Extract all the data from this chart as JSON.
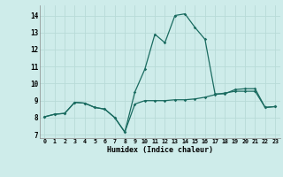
{
  "xlabel": "Humidex (Indice chaleur)",
  "ylabel": "",
  "background_color": "#ceecea",
  "grid_color": "#b8dbd8",
  "line_color": "#1a6b60",
  "xlim": [
    -0.5,
    23.5
  ],
  "ylim": [
    6.8,
    14.6
  ],
  "xticks": [
    0,
    1,
    2,
    3,
    4,
    5,
    6,
    7,
    8,
    9,
    10,
    11,
    12,
    13,
    14,
    15,
    16,
    17,
    18,
    19,
    20,
    21,
    22,
    23
  ],
  "yticks": [
    7,
    8,
    9,
    10,
    11,
    12,
    13,
    14
  ],
  "series1_x": [
    0,
    1,
    2,
    3,
    4,
    5,
    6,
    7,
    8,
    9,
    10,
    11,
    12,
    13,
    14,
    15,
    16,
    17,
    18,
    19,
    20,
    21,
    22,
    23
  ],
  "series1_y": [
    8.05,
    8.2,
    8.25,
    8.9,
    8.85,
    8.6,
    8.5,
    8.0,
    7.15,
    8.8,
    9.0,
    9.0,
    9.0,
    9.05,
    9.05,
    9.1,
    9.2,
    9.35,
    9.45,
    9.55,
    9.55,
    9.55,
    8.6,
    8.65
  ],
  "series2_x": [
    0,
    1,
    2,
    3,
    4,
    5,
    6,
    7,
    8,
    9,
    10,
    11,
    12,
    13,
    14,
    15,
    16,
    17,
    18,
    19,
    20,
    21,
    22,
    23
  ],
  "series2_y": [
    8.05,
    8.2,
    8.25,
    8.9,
    8.85,
    8.6,
    8.5,
    8.0,
    7.15,
    9.5,
    10.85,
    12.9,
    12.4,
    14.0,
    14.1,
    13.3,
    12.6,
    9.4,
    9.4,
    9.65,
    9.7,
    9.7,
    8.6,
    8.65
  ]
}
